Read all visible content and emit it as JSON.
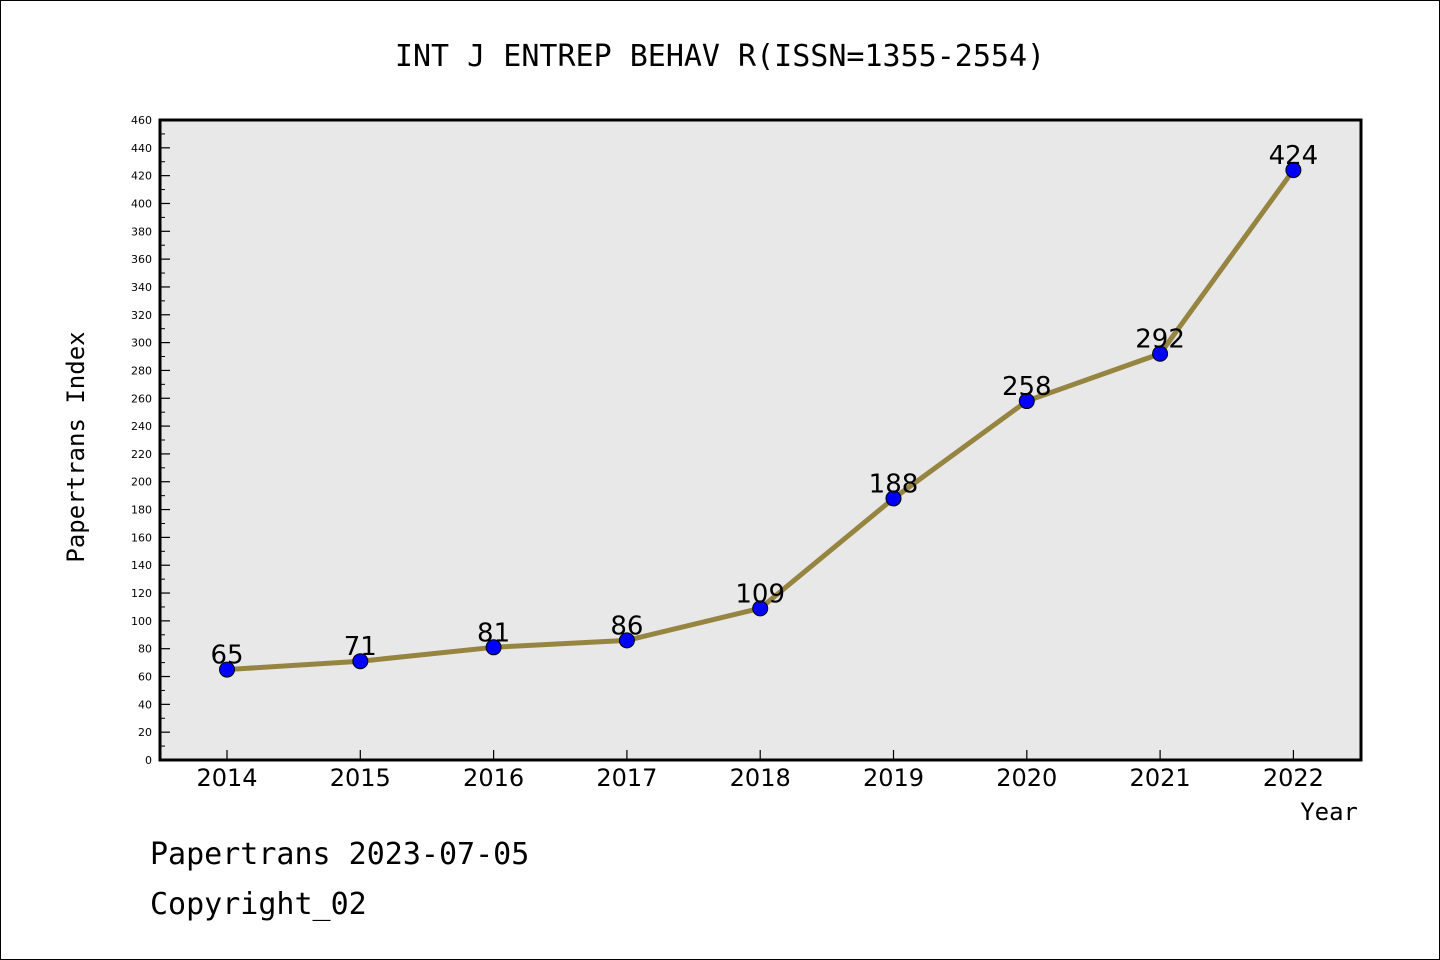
{
  "chart_data": {
    "type": "line",
    "title": "INT J ENTREP BEHAV R(ISSN=1355-2554)",
    "xlabel": "Year",
    "ylabel": "Papertrans Index",
    "categories": [
      "2014",
      "2015",
      "2016",
      "2017",
      "2018",
      "2019",
      "2020",
      "2021",
      "2022"
    ],
    "series": [
      {
        "values": [
          65,
          71,
          81,
          86,
          109,
          188,
          258,
          292,
          424
        ]
      }
    ],
    "data_labels": [
      "65",
      "71",
      "81",
      "86",
      "109",
      "188",
      "258",
      "292",
      "424"
    ],
    "ylim": [
      0,
      460
    ],
    "ytick_step": 20,
    "grid": false,
    "line_color": "#968540",
    "marker_color": "#0000ff",
    "plot_background": "#e8e8e8"
  },
  "footer": {
    "line1": "Papertrans 2023-07-05",
    "line2": "Copyright_02"
  }
}
